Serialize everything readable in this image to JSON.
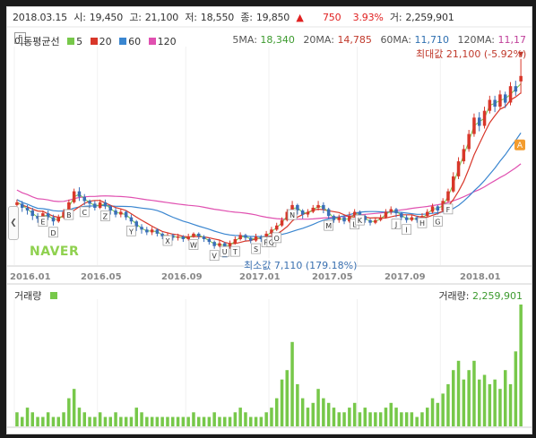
{
  "header": {
    "date": "2018.03.15",
    "open_label": "시:",
    "open": "19,450",
    "high_label": "고:",
    "high": "21,100",
    "low_label": "저:",
    "low": "18,550",
    "close_label": "종:",
    "close": "19,850",
    "up_arrow": "▲",
    "change": "750",
    "change_pct": "3.93%",
    "volume_label": "거:",
    "volume": "2,259,901"
  },
  "ma_legend": {
    "title": "이동평균선",
    "items": [
      {
        "label": "5",
        "color": "#77c84a"
      },
      {
        "label": "20",
        "color": "#d8372a"
      },
      {
        "label": "60",
        "color": "#3a86d0"
      },
      {
        "label": "120",
        "color": "#e050b0"
      }
    ]
  },
  "ma_values": {
    "ma5_label": "5MA:",
    "ma5": "18,340",
    "ma20_label": "20MA:",
    "ma20": "14,785",
    "ma60_label": "60MA:",
    "ma60": "11,710",
    "ma120_label": "120MA:",
    "ma120": "11,17"
  },
  "max_label": "최대값 21,100 (-5.92%)",
  "min_label": "최소값 7,110 (179.18%)",
  "f_box": "F",
  "watermark": "NAVER",
  "a_marker": "A",
  "x_ticks": [
    "2016.01",
    "2016.05",
    "2016.09",
    "2017.01",
    "2017.05",
    "2017.09",
    "2018.01"
  ],
  "volume_panel": {
    "title": "거래량",
    "value_label": "거래량:",
    "value": "2,259,901"
  },
  "colors": {
    "up": "#d8372a",
    "down": "#3a6fb8",
    "ma5": "#77c84a",
    "ma20": "#d8372a",
    "ma60": "#3a86d0",
    "ma120": "#e050b0",
    "volume": "#77c84a"
  },
  "chart_data": {
    "type": "candlestick",
    "x_range": [
      "2015.12",
      "2018.03"
    ],
    "y_range": [
      6000,
      22000
    ],
    "candles": [
      [
        0,
        10400,
        10600,
        10200,
        10800
      ],
      [
        1,
        10500,
        10200,
        9900,
        10700
      ],
      [
        2,
        10200,
        10000,
        9700,
        10400
      ],
      [
        3,
        10000,
        9600,
        9300,
        10200
      ],
      [
        4,
        9600,
        9400,
        9100,
        9800
      ],
      [
        5,
        9400,
        9800,
        9300,
        10000
      ],
      [
        6,
        9800,
        9500,
        9300,
        10000
      ],
      [
        7,
        9500,
        9200,
        8900,
        9700
      ],
      [
        8,
        9200,
        9500,
        9100,
        9700
      ],
      [
        9,
        9500,
        9900,
        9400,
        10100
      ],
      [
        10,
        9900,
        10600,
        9800,
        10800
      ],
      [
        11,
        10600,
        11400,
        10500,
        11600
      ],
      [
        12,
        11400,
        11000,
        10700,
        11700
      ],
      [
        13,
        11000,
        10700,
        10400,
        11200
      ],
      [
        14,
        10700,
        10500,
        10200,
        10800
      ],
      [
        15,
        10500,
        10200,
        10000,
        10700
      ],
      [
        16,
        10200,
        10600,
        10100,
        10800
      ],
      [
        17,
        10600,
        10300,
        10100,
        10800
      ],
      [
        18,
        10300,
        10000,
        9700,
        10400
      ],
      [
        19,
        10000,
        9700,
        9500,
        10200
      ],
      [
        20,
        9700,
        9900,
        9500,
        10100
      ],
      [
        21,
        9900,
        9500,
        9300,
        10000
      ],
      [
        22,
        9500,
        9200,
        9000,
        9700
      ],
      [
        23,
        9200,
        8800,
        8500,
        9300
      ],
      [
        24,
        8800,
        8600,
        8300,
        9000
      ],
      [
        25,
        8600,
        8400,
        8200,
        8800
      ],
      [
        26,
        8400,
        8600,
        8200,
        8800
      ],
      [
        27,
        8600,
        8300,
        8100,
        8700
      ],
      [
        28,
        8300,
        8100,
        7900,
        8400
      ],
      [
        29,
        8100,
        8200,
        7900,
        8400
      ],
      [
        30,
        8200,
        8000,
        7800,
        8300
      ],
      [
        31,
        8000,
        8100,
        7800,
        8300
      ],
      [
        32,
        8100,
        7900,
        7700,
        8200
      ],
      [
        33,
        7900,
        8100,
        7800,
        8300
      ],
      [
        34,
        8100,
        8300,
        8000,
        8400
      ],
      [
        35,
        8300,
        8100,
        7900,
        8400
      ],
      [
        36,
        8100,
        7900,
        7700,
        8200
      ],
      [
        37,
        7900,
        7700,
        7500,
        8000
      ],
      [
        38,
        7700,
        7400,
        7200,
        7800
      ],
      [
        39,
        7400,
        7600,
        7300,
        7800
      ],
      [
        40,
        7600,
        7300,
        7100,
        7700
      ],
      [
        41,
        7300,
        7600,
        7200,
        7800
      ],
      [
        42,
        7600,
        7900,
        7500,
        8100
      ],
      [
        43,
        7900,
        8200,
        7800,
        8400
      ],
      [
        44,
        8200,
        8000,
        7800,
        8300
      ],
      [
        45,
        8000,
        7800,
        7600,
        8100
      ],
      [
        46,
        7800,
        8100,
        7700,
        8300
      ],
      [
        47,
        8100,
        7900,
        7700,
        8200
      ],
      [
        48,
        7900,
        8300,
        7800,
        8500
      ],
      [
        49,
        8300,
        8600,
        8200,
        8800
      ],
      [
        50,
        8600,
        8900,
        8500,
        9100
      ],
      [
        51,
        8900,
        9300,
        8800,
        9500
      ],
      [
        52,
        9300,
        9900,
        9200,
        10100
      ],
      [
        53,
        9900,
        10400,
        9800,
        10700
      ],
      [
        54,
        10400,
        10000,
        9700,
        10500
      ],
      [
        55,
        10000,
        9700,
        9400,
        10100
      ],
      [
        56,
        9700,
        9900,
        9500,
        10100
      ],
      [
        57,
        9900,
        10200,
        9800,
        10400
      ],
      [
        58,
        10200,
        10400,
        10000,
        10700
      ],
      [
        59,
        10400,
        10100,
        9800,
        10600
      ],
      [
        60,
        10100,
        9600,
        9400,
        10200
      ],
      [
        61,
        9600,
        9300,
        9100,
        9700
      ],
      [
        62,
        9300,
        9500,
        9100,
        9700
      ],
      [
        63,
        9500,
        9200,
        9000,
        9600
      ],
      [
        64,
        9200,
        9600,
        9100,
        9900
      ],
      [
        65,
        9600,
        9900,
        9500,
        10100
      ],
      [
        66,
        9900,
        9600,
        9400,
        10000
      ],
      [
        67,
        9600,
        9300,
        9100,
        9700
      ],
      [
        68,
        9300,
        9100,
        8900,
        9400
      ],
      [
        69,
        9100,
        9300,
        9000,
        9500
      ],
      [
        70,
        9300,
        9500,
        9200,
        9700
      ],
      [
        71,
        9500,
        9900,
        9400,
        10100
      ],
      [
        72,
        9900,
        10100,
        9700,
        10300
      ],
      [
        73,
        10100,
        9800,
        9500,
        10200
      ],
      [
        74,
        9800,
        9500,
        9300,
        9900
      ],
      [
        75,
        9500,
        9300,
        9100,
        9700
      ],
      [
        76,
        9300,
        9500,
        9200,
        9700
      ],
      [
        77,
        9500,
        9300,
        9100,
        9600
      ],
      [
        78,
        9300,
        9600,
        9200,
        9800
      ],
      [
        79,
        9600,
        9900,
        9500,
        10100
      ],
      [
        80,
        9900,
        10300,
        9800,
        10500
      ],
      [
        81,
        10300,
        10000,
        9700,
        10400
      ],
      [
        82,
        10000,
        10700,
        9900,
        10900
      ],
      [
        83,
        10700,
        11400,
        10600,
        11600
      ],
      [
        84,
        11400,
        12500,
        11300,
        12800
      ],
      [
        85,
        12500,
        13600,
        12300,
        13900
      ],
      [
        86,
        13600,
        14500,
        13400,
        14800
      ],
      [
        87,
        14500,
        15600,
        14300,
        15900
      ],
      [
        88,
        15600,
        16800,
        15400,
        17100
      ],
      [
        89,
        16800,
        16200,
        15800,
        17200
      ],
      [
        90,
        16200,
        17300,
        16000,
        17600
      ],
      [
        91,
        17300,
        18100,
        17100,
        18400
      ],
      [
        92,
        18100,
        17600,
        17200,
        18400
      ],
      [
        93,
        17600,
        18500,
        17400,
        18800
      ],
      [
        94,
        18500,
        17900,
        17500,
        18700
      ],
      [
        95,
        17900,
        19100,
        17700,
        19400
      ],
      [
        96,
        19100,
        18700,
        18400,
        19500
      ],
      [
        97,
        19450,
        19850,
        18550,
        21100
      ]
    ],
    "volume": [
      3,
      2,
      4,
      3,
      2,
      2,
      3,
      2,
      2,
      3,
      6,
      8,
      4,
      3,
      2,
      2,
      3,
      2,
      2,
      3,
      2,
      2,
      2,
      4,
      3,
      2,
      2,
      2,
      2,
      2,
      2,
      2,
      2,
      2,
      3,
      2,
      2,
      2,
      3,
      2,
      2,
      2,
      3,
      4,
      3,
      2,
      2,
      2,
      3,
      4,
      6,
      10,
      12,
      18,
      9,
      6,
      4,
      5,
      8,
      6,
      5,
      4,
      3,
      3,
      4,
      5,
      3,
      4,
      3,
      3,
      3,
      4,
      5,
      4,
      3,
      3,
      3,
      2,
      3,
      4,
      6,
      5,
      7,
      9,
      12,
      14,
      10,
      12,
      14,
      10,
      11,
      9,
      10,
      8,
      12,
      9,
      16,
      26
    ],
    "volume_max": 2259901,
    "annotations": [
      "B",
      "C",
      "D",
      "E",
      "Z",
      "Y",
      "X",
      "W",
      "V",
      "U",
      "T",
      "S",
      "R",
      "Q",
      "O",
      "N",
      "M",
      "L",
      "K",
      "J",
      "I",
      "H",
      "G",
      "F"
    ],
    "xlabel": "",
    "ylabel": ""
  }
}
